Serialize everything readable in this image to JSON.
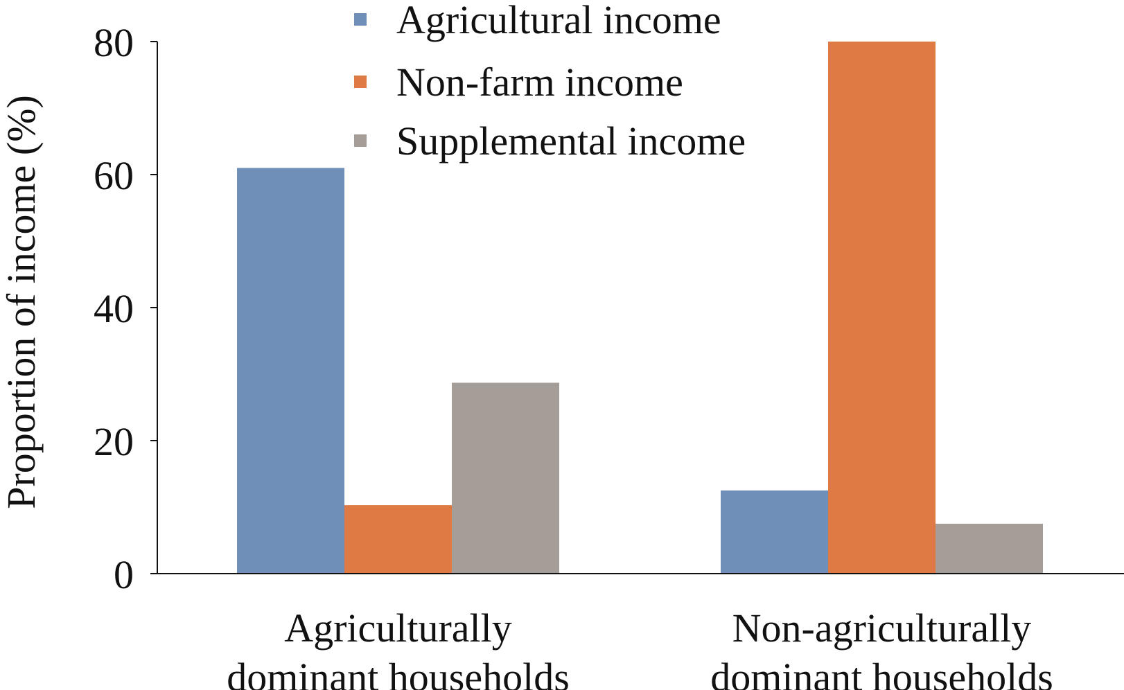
{
  "chart_data": {
    "type": "bar",
    "categories": [
      [
        "Agriculturally",
        "dominant households"
      ],
      [
        "Non-agriculturally",
        "dominant households"
      ]
    ],
    "series": [
      {
        "name": "Agricultural income",
        "values": [
          61,
          12.5
        ],
        "color": "#6f8fb8"
      },
      {
        "name": "Non-farm income",
        "values": [
          10.3,
          80
        ],
        "color": "#e07a45"
      },
      {
        "name": "Supplemental income",
        "values": [
          28.7,
          7.5
        ],
        "color": "#a59d98"
      }
    ],
    "title": "",
    "xlabel": "",
    "ylabel": "Proportion of income (%)",
    "ylim": [
      0,
      80
    ],
    "yticks": [
      "0",
      "20",
      "40",
      "60",
      "80"
    ],
    "grid": false,
    "legend_position": "top"
  }
}
